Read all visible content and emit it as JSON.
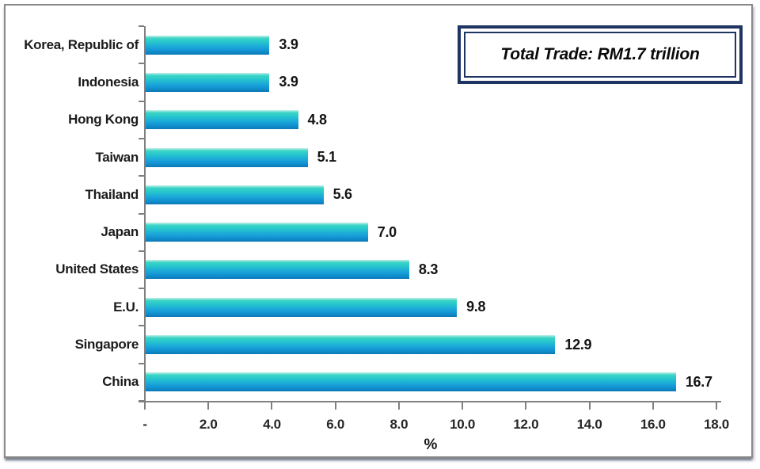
{
  "annotation": {
    "label": "Total Trade: RM1.7 trillion",
    "border_color": "#1e3461"
  },
  "chart_data": {
    "type": "bar",
    "orientation": "horizontal",
    "categories": [
      "Korea, Republic of",
      "Indonesia",
      "Hong Kong",
      "Taiwan",
      "Thailand",
      "Japan",
      "United States",
      "E.U.",
      "Singapore",
      "China"
    ],
    "values": [
      3.9,
      3.9,
      4.8,
      5.1,
      5.6,
      7.0,
      8.3,
      9.8,
      12.9,
      16.7
    ],
    "value_labels": [
      "3.9",
      "3.9",
      "4.8",
      "5.1",
      "5.6",
      "7.0",
      "8.3",
      "9.8",
      "12.9",
      "16.7"
    ],
    "xlabel": "%",
    "x_tick_labels": [
      "-",
      "2.0",
      "4.0",
      "6.0",
      "8.0",
      "10.0",
      "12.0",
      "14.0",
      "16.0",
      "18.0"
    ],
    "x_tick_values": [
      0,
      2,
      4,
      6,
      8,
      10,
      12,
      14,
      16,
      18
    ],
    "xlim": [
      0,
      18
    ],
    "grid": false,
    "legend": false,
    "bar_gradient": [
      "#c4f1e9",
      "#3bd4c4",
      "#1aa5da",
      "#0c79b6"
    ],
    "axis_color": "#808080"
  }
}
